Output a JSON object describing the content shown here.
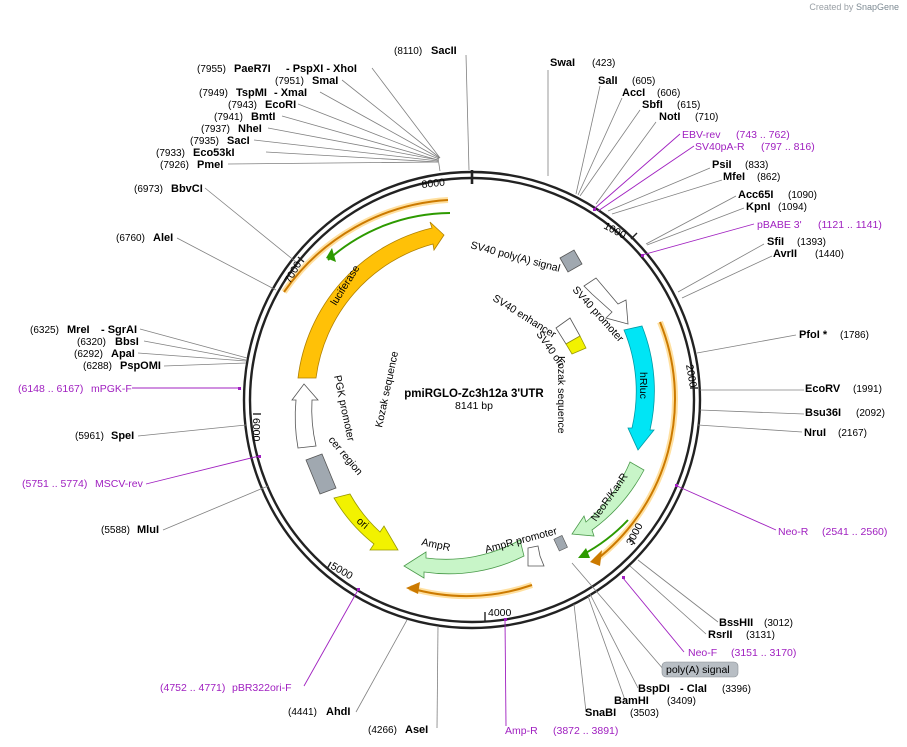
{
  "credit": {
    "prefix": "Created by",
    "brand": "SnapGene"
  },
  "plasmid": {
    "name": "pmiRGLO-Zc3h12a 3'UTR",
    "size": "8141 bp"
  },
  "ticks": [
    "1000",
    "2000",
    "3000",
    "4000",
    "5000",
    "6000",
    "7000",
    "8000"
  ],
  "enzymes": [
    {
      "name": "SacII",
      "pos": "(8110)"
    },
    {
      "name": "SwaI",
      "pos": "(423)"
    },
    {
      "name": "SalI",
      "pos": "(605)"
    },
    {
      "name": "AccI",
      "pos": "(606)"
    },
    {
      "name": "SbfI",
      "pos": "(615)"
    },
    {
      "name": "NotI",
      "pos": "(710)"
    },
    {
      "name": "PsiI",
      "pos": "(833)"
    },
    {
      "name": "MfeI",
      "pos": "(862)"
    },
    {
      "name": "Acc65I",
      "pos": "(1090)"
    },
    {
      "name": "KpnI",
      "pos": "(1094)"
    },
    {
      "name": "SfiI",
      "pos": "(1393)"
    },
    {
      "name": "AvrII",
      "pos": "(1440)"
    },
    {
      "name": "PfoI *",
      "pos": "(1786)"
    },
    {
      "name": "EcoRV",
      "pos": "(1991)"
    },
    {
      "name": "Bsu36I",
      "pos": "(2092)"
    },
    {
      "name": "NruI",
      "pos": "(2167)"
    },
    {
      "name": "BssHII",
      "pos": "(3012)"
    },
    {
      "name": "RsrII",
      "pos": "(3131)"
    },
    {
      "name": "BspDI",
      "extra": "- ClaI",
      "pos": "(3396)"
    },
    {
      "name": "BamHI",
      "pos": "(3409)"
    },
    {
      "name": "SnaBI",
      "pos": "(3503)"
    },
    {
      "name": "AseI",
      "pos": "(4266)"
    },
    {
      "name": "AhdI",
      "pos": "(4441)"
    },
    {
      "name": "MluI",
      "pos": "(5588)"
    },
    {
      "name": "SpeI",
      "pos": "(5961)"
    },
    {
      "name": "PspOMI",
      "pos": "(6288)"
    },
    {
      "name": "ApaI",
      "pos": "(6292)"
    },
    {
      "name": "BbsI",
      "pos": "(6320)"
    },
    {
      "name": "MreI",
      "extra": "- SgrAI",
      "pos": "(6325)"
    },
    {
      "name": "AleI",
      "pos": "(6760)"
    },
    {
      "name": "BbvCI",
      "pos": "(6973)"
    },
    {
      "name": "PmeI",
      "pos": "(7926)"
    },
    {
      "name": "Eco53kI",
      "pos": "(7933)"
    },
    {
      "name": "SacI",
      "pos": "(7935)"
    },
    {
      "name": "NheI",
      "pos": "(7937)"
    },
    {
      "name": "BmtI",
      "pos": "(7941)"
    },
    {
      "name": "EcoRI",
      "pos": "(7943)"
    },
    {
      "name": "TspMI",
      "extra": "- XmaI",
      "pos": "(7949)"
    },
    {
      "name": "SmaI",
      "pos": "(7951)"
    },
    {
      "name": "PaeR7I",
      "extra": "- PspXI   - XhoI",
      "pos": "(7955)"
    }
  ],
  "primers": [
    {
      "name": "EBV-rev",
      "range": "(743 .. 762)"
    },
    {
      "name": "SV40pA-R",
      "range": "(797 .. 816)"
    },
    {
      "name": "pBABE 3'",
      "range": "(1121 .. 1141)"
    },
    {
      "name": "Neo-R",
      "range": "(2541 .. 2560)"
    },
    {
      "name": "Neo-F",
      "range": "(3151 .. 3170)"
    },
    {
      "name": "Amp-R",
      "range": "(3872 .. 3891)"
    },
    {
      "name": "pBR322ori-F",
      "range": "(4752 .. 4771)"
    },
    {
      "name": "MSCV-rev",
      "range": "(5751 .. 5774)"
    },
    {
      "name": "mPGK-F",
      "range": "(6148 .. 6167)"
    }
  ],
  "features": {
    "sv40_polya": "SV40 poly(A) signal",
    "sv40_promoter": "SV40 promoter",
    "sv40_enhancer": "SV40 enhancer",
    "sv40_ori": "SV40 ori",
    "kozak_right": "Kozak sequence",
    "hrluc": "hRluc",
    "neokanr": "NeoR/KanR",
    "ampr_promoter": "AmpR promoter",
    "ampr": "AmpR",
    "ori": "ori",
    "cer_region": "cer region",
    "pgk_promoter": "PGK promoter",
    "kozak_left": "Kozak sequence",
    "luciferase": "luciferase",
    "polya_box": "poly(A) signal"
  },
  "colors": {
    "backbone": "#222222",
    "luciferase": "#ffc107",
    "hrluc": "#00e5f5",
    "neokanr": "#c8f5c8",
    "ampr": "#c8f5c8",
    "ori": "#f2f200",
    "grey_feature": "#a0a8b0",
    "primer": "#a020c0",
    "orf_halo": "#ffe0a0",
    "orf_line": "#cc7a00",
    "green_orf": "#2d9a00"
  }
}
